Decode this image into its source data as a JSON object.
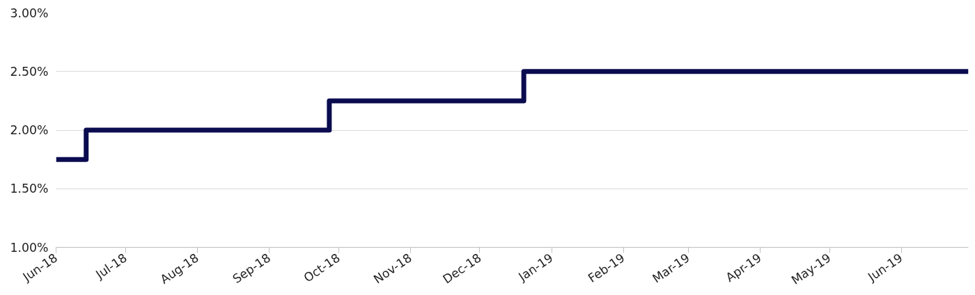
{
  "chart_data": {
    "type": "step",
    "x": [
      "2018-06-01",
      "2018-06-14",
      "2018-09-27",
      "2018-12-20",
      "2019-06-30"
    ],
    "series": [
      {
        "color": "#0b0c4f",
        "values": [
          1.75,
          2.0,
          2.25,
          2.5,
          2.5
        ]
      }
    ],
    "xlim": [
      "2018-06-01",
      "2019-06-30"
    ],
    "xticks": [
      {
        "value": "2018-06-01",
        "label": "Jun-18"
      },
      {
        "value": "2018-07-01",
        "label": "Jul-18"
      },
      {
        "value": "2018-08-01",
        "label": "Aug-18"
      },
      {
        "value": "2018-09-01",
        "label": "Sep-18"
      },
      {
        "value": "2018-10-01",
        "label": "Oct-18"
      },
      {
        "value": "2018-11-01",
        "label": "Nov-18"
      },
      {
        "value": "2018-12-01",
        "label": "Dec-18"
      },
      {
        "value": "2019-01-01",
        "label": "Jan-19"
      },
      {
        "value": "2019-02-01",
        "label": "Feb-19"
      },
      {
        "value": "2019-03-01",
        "label": "Mar-19"
      },
      {
        "value": "2019-04-01",
        "label": "Apr-19"
      },
      {
        "value": "2019-05-01",
        "label": "May-19"
      },
      {
        "value": "2019-06-01",
        "label": "Jun-19"
      }
    ],
    "ylim": [
      1.0,
      3.0
    ],
    "yticks": [
      {
        "value": 1.0,
        "label": "1.00%"
      },
      {
        "value": 1.5,
        "label": "1.50%"
      },
      {
        "value": 2.0,
        "label": "2.00%"
      },
      {
        "value": 2.5,
        "label": "2.50%"
      },
      {
        "value": 3.0,
        "label": "3.00%"
      }
    ],
    "grid": "y",
    "marker": "none",
    "line_style": "solid"
  }
}
